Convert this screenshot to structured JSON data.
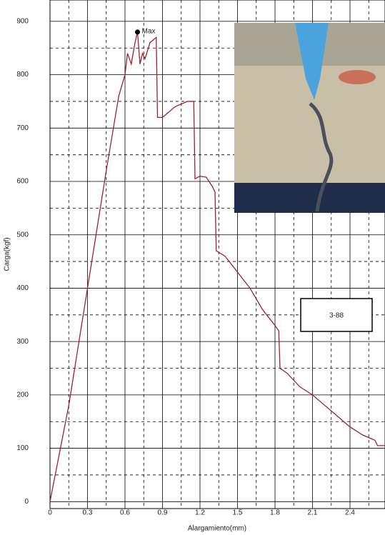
{
  "chart_data": {
    "type": "line",
    "x_label": "Alargamiento(mm)",
    "y_label": "Carga(kgf)",
    "xlim": [
      0,
      2.68
    ],
    "ylim": [
      -13,
      940
    ],
    "xticks": [
      0,
      0.3,
      0.6,
      0.9,
      1.2,
      1.5,
      1.8,
      2.1,
      2.4
    ],
    "yticks": [
      0,
      100,
      200,
      300,
      400,
      500,
      600,
      700,
      800,
      900
    ],
    "xminor": [
      0.15,
      0.45,
      0.75,
      1.05,
      1.35,
      1.65,
      1.95,
      2.25,
      2.55
    ],
    "yminor": [
      50,
      150,
      250,
      350,
      450,
      550,
      650,
      750,
      850
    ],
    "grid": true,
    "series": [
      {
        "color": "#a0202e",
        "x": [
          0,
          0.15,
          0.3,
          0.45,
          0.55,
          0.6,
          0.62,
          0.65,
          0.68,
          0.7,
          0.72,
          0.74,
          0.76,
          0.8,
          0.85,
          0.86,
          0.9,
          1.0,
          1.1,
          1.15,
          1.16,
          1.2,
          1.25,
          1.3,
          1.32,
          1.33,
          1.4,
          1.5,
          1.6,
          1.7,
          1.8,
          1.83,
          1.84,
          1.9,
          2.0,
          2.1,
          2.2,
          2.3,
          2.4,
          2.5,
          2.6,
          2.62,
          2.68
        ],
        "values": [
          0,
          180,
          400,
          620,
          760,
          800,
          840,
          820,
          860,
          880,
          820,
          840,
          830,
          860,
          870,
          720,
          720,
          740,
          750,
          750,
          605,
          610,
          608,
          590,
          580,
          470,
          460,
          430,
          400,
          360,
          330,
          320,
          250,
          240,
          215,
          200,
          180,
          160,
          140,
          125,
          115,
          105,
          105
        ]
      }
    ],
    "annotations": [
      {
        "text": "Max",
        "x": 0.7,
        "y": 880
      }
    ],
    "label_box": "3-88"
  }
}
